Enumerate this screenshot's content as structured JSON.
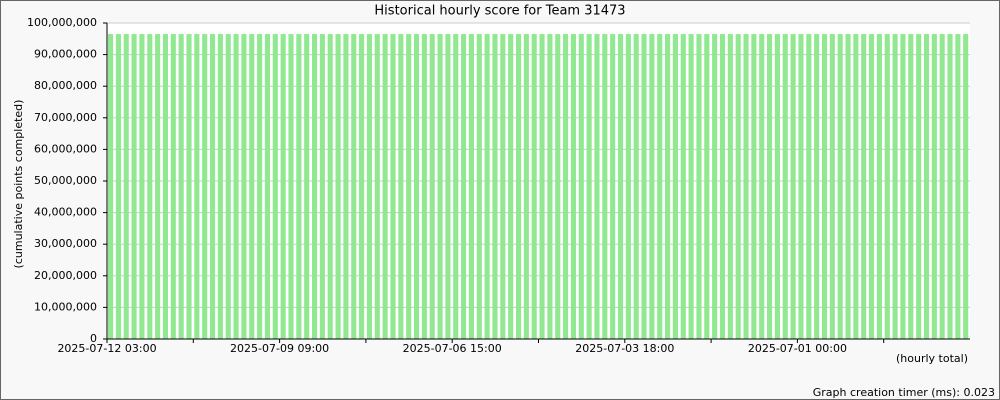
{
  "chart_data": {
    "type": "bar",
    "title": "Historical hourly score for Team 31473",
    "y_label": "(cumulative points completed)",
    "x_note": "(hourly total)",
    "footer": "Graph creation timer (ms): 0.023",
    "color": "#90e890",
    "grid": true,
    "ylim": [
      0,
      100000000
    ],
    "yticks": [
      0,
      {
        "value": 10000000,
        "label": "10,000,000"
      },
      {
        "value": 20000000,
        "label": "20,000,000"
      },
      {
        "value": 30000000,
        "label": "30,000,000"
      },
      {
        "value": 40000000,
        "label": "40,000,000"
      },
      {
        "value": 50000000,
        "label": "50,000,000"
      },
      {
        "value": 60000000,
        "label": "60,000,000"
      },
      {
        "value": 70000000,
        "label": "70,000,000"
      },
      {
        "value": 80000000,
        "label": "80,000,000"
      },
      {
        "value": 90000000,
        "label": "90,000,000"
      },
      {
        "value": 100000000,
        "label": "100,000,000"
      }
    ],
    "categories": [
      "2025-07-12 03:00",
      null,
      null,
      null,
      null,
      null,
      null,
      null,
      null,
      null,
      null,
      null,
      null,
      null,
      null,
      null,
      null,
      null,
      null,
      null,
      null,
      null,
      "2025-07-09 09:00",
      null,
      null,
      null,
      null,
      null,
      null,
      null,
      null,
      null,
      null,
      null,
      null,
      null,
      null,
      null,
      null,
      null,
      null,
      null,
      null,
      null,
      "2025-07-06 15:00",
      null,
      null,
      null,
      null,
      null,
      null,
      null,
      null,
      null,
      null,
      null,
      null,
      null,
      null,
      null,
      null,
      null,
      null,
      null,
      null,
      null,
      "2025-07-03 18:00",
      null,
      null,
      null,
      null,
      null,
      null,
      null,
      null,
      null,
      null,
      null,
      null,
      null,
      null,
      null,
      null,
      null,
      null,
      null,
      null,
      null,
      "2025-07-01 00:00",
      null,
      null,
      null,
      null,
      null,
      null,
      null,
      null,
      null,
      null,
      null,
      null,
      null,
      null,
      null,
      null,
      null,
      null,
      null,
      null,
      null
    ],
    "values": [
      96500000,
      96500000,
      96500000,
      96500000,
      96500000,
      96500000,
      96500000,
      96500000,
      96500000,
      96500000,
      96500000,
      96500000,
      96500000,
      96500000,
      96500000,
      96500000,
      96500000,
      96500000,
      96500000,
      96500000,
      96500000,
      96500000,
      96500000,
      96500000,
      96500000,
      96500000,
      96500000,
      96500000,
      96500000,
      96500000,
      96500000,
      96500000,
      96500000,
      96500000,
      96500000,
      96500000,
      96500000,
      96500000,
      96500000,
      96500000,
      96500000,
      96500000,
      96500000,
      96500000,
      96500000,
      96500000,
      96500000,
      96500000,
      96500000,
      96500000,
      96500000,
      96500000,
      96500000,
      96500000,
      96500000,
      96500000,
      96500000,
      96500000,
      96500000,
      96500000,
      96500000,
      96500000,
      96500000,
      96500000,
      96500000,
      96500000,
      96500000,
      96500000,
      96500000,
      96500000,
      96500000,
      96500000,
      96500000,
      96500000,
      96500000,
      96500000,
      96500000,
      96500000,
      96500000,
      96500000,
      96500000,
      96500000,
      96500000,
      96500000,
      96500000,
      96500000,
      96500000,
      96500000,
      96500000,
      96500000,
      96500000,
      96500000,
      96500000,
      96500000,
      96500000,
      96500000,
      96500000,
      96500000,
      96500000,
      96500000,
      96500000,
      96500000,
      96500000,
      96500000,
      96500000,
      96500000,
      96500000,
      96500000,
      96500000,
      96500000
    ]
  }
}
